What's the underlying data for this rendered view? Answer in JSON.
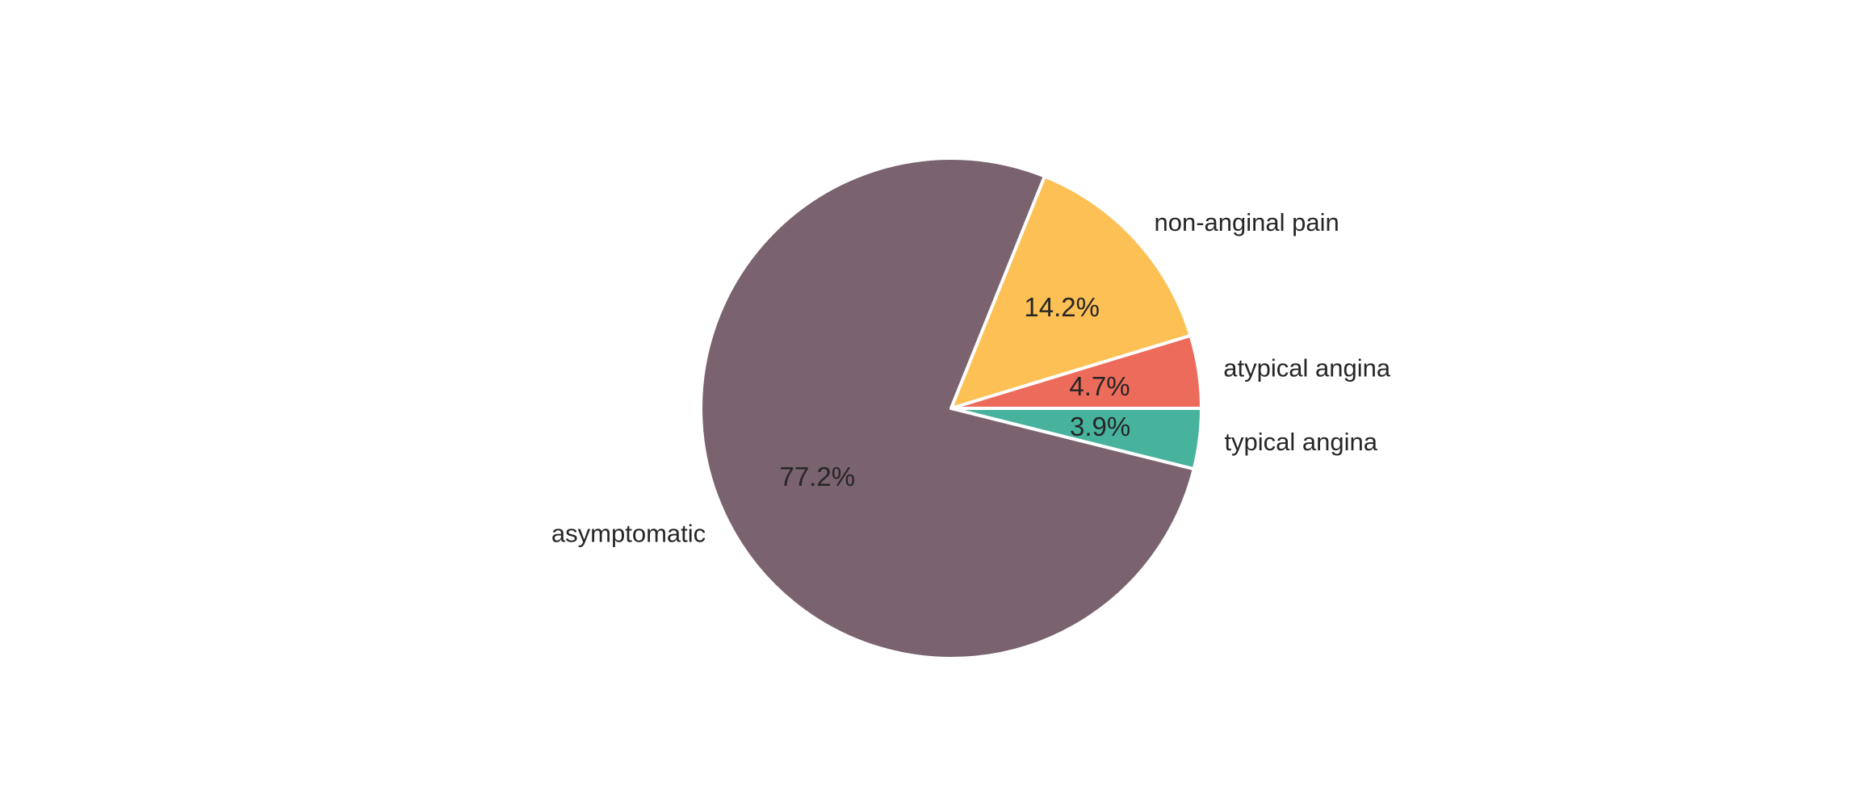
{
  "chart_data": {
    "type": "pie",
    "start_angle_deg": 0,
    "direction": "clockwise",
    "slices": [
      {
        "label": "typical angina",
        "value": 3.9,
        "pct_text": "3.9%",
        "color": "#48b39c"
      },
      {
        "label": "asymptomatic",
        "value": 77.2,
        "pct_text": "77.2%",
        "color": "#7a626f"
      },
      {
        "label": "non-anginal pain",
        "value": 14.2,
        "pct_text": "14.2%",
        "color": "#fdc055"
      },
      {
        "label": "atypical angina",
        "value": 4.7,
        "pct_text": "4.7%",
        "color": "#ed6b5a"
      }
    ]
  }
}
